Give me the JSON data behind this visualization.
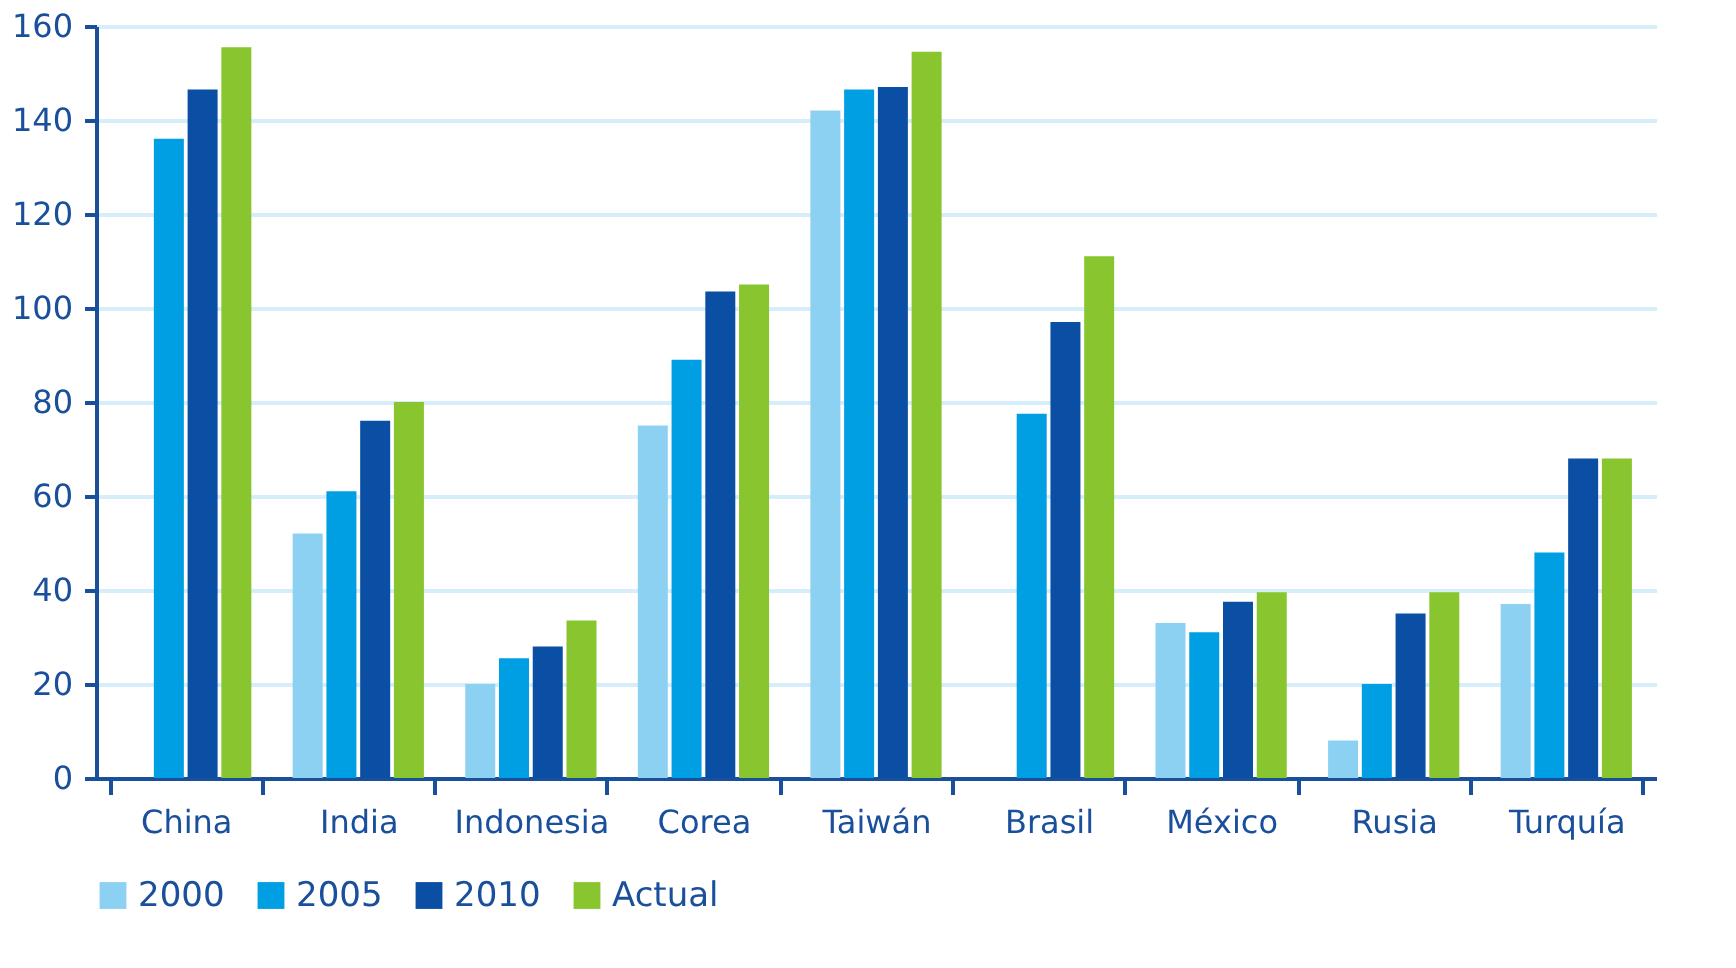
{
  "chart_data": {
    "type": "bar",
    "categories": [
      "China",
      "India",
      "Indonesia",
      "Corea",
      "Taiwán",
      "Brasil",
      "México",
      "Rusia",
      "Turquía"
    ],
    "series": [
      {
        "name": "2000",
        "color": "#8dd1f2",
        "values": [
          null,
          52,
          20,
          75,
          142,
          null,
          33,
          8,
          37
        ]
      },
      {
        "name": "2005",
        "color": "#009fe3",
        "values": [
          136,
          61,
          25.5,
          89,
          146.5,
          77.5,
          31,
          20,
          48
        ]
      },
      {
        "name": "2010",
        "color": "#0a4fa3",
        "values": [
          146.5,
          76,
          28,
          103.5,
          147,
          97,
          37.5,
          35,
          68
        ]
      },
      {
        "name": "Actual",
        "color": "#89c52f",
        "values": [
          155.5,
          80,
          33.5,
          105,
          154.5,
          111,
          39.5,
          39.5,
          68
        ]
      }
    ],
    "ylim": [
      0,
      160
    ],
    "yticks": [
      0,
      20,
      40,
      60,
      80,
      100,
      120,
      140,
      160
    ],
    "grid": "y",
    "legend": "bottom left"
  }
}
